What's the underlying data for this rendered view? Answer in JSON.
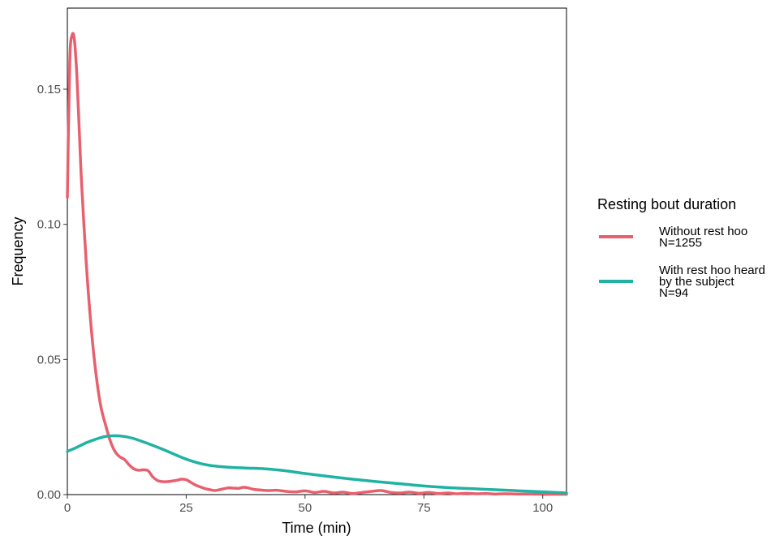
{
  "chart_data": {
    "type": "line",
    "title": "",
    "xlabel": "Time (min)",
    "ylabel": "Frequency",
    "xlim": [
      0,
      105
    ],
    "ylim": [
      0,
      0.18
    ],
    "x_ticks": [
      0,
      25,
      50,
      75,
      100
    ],
    "x_tick_labels": [
      "0",
      "25",
      "50",
      "75",
      "100"
    ],
    "y_ticks": [
      0,
      0.05,
      0.1,
      0.15
    ],
    "y_tick_labels": [
      "0.00",
      "0.05",
      "0.10",
      "0.15"
    ],
    "grid": false,
    "legend": {
      "title": "Resting bout duration",
      "placement": "right"
    },
    "series": [
      {
        "name": "Without rest hoo\nN=1255",
        "color": "#e8606e",
        "x": [
          0,
          0.5,
          1,
          1.5,
          2,
          2.5,
          3,
          4,
          5,
          6,
          7,
          8,
          9,
          10,
          11,
          12,
          13,
          14,
          15,
          16,
          17,
          18,
          19,
          20,
          21,
          22,
          23,
          24,
          25,
          26,
          27,
          28,
          29,
          30,
          31,
          32,
          33,
          34,
          35,
          36,
          37,
          38,
          39,
          40,
          42,
          44,
          46,
          48,
          50,
          52,
          54,
          56,
          58,
          60,
          62,
          64,
          66,
          68,
          70,
          72,
          74,
          76,
          78,
          80,
          82,
          84,
          86,
          88,
          90,
          92,
          95,
          98,
          100,
          102,
          105
        ],
        "values": [
          0.11,
          0.16,
          0.17,
          0.168,
          0.155,
          0.135,
          0.115,
          0.085,
          0.062,
          0.045,
          0.033,
          0.026,
          0.02,
          0.016,
          0.014,
          0.013,
          0.011,
          0.0095,
          0.009,
          0.0092,
          0.0088,
          0.0065,
          0.0052,
          0.0048,
          0.0048,
          0.005,
          0.0053,
          0.0057,
          0.0055,
          0.0045,
          0.0035,
          0.0028,
          0.0022,
          0.0018,
          0.0015,
          0.0018,
          0.0022,
          0.0025,
          0.0024,
          0.0023,
          0.0027,
          0.0025,
          0.002,
          0.0018,
          0.0015,
          0.0016,
          0.0012,
          0.001,
          0.0014,
          0.0008,
          0.0012,
          0.0006,
          0.0009,
          0.0004,
          0.0008,
          0.0012,
          0.0015,
          0.0008,
          0.0006,
          0.0009,
          0.0005,
          0.0008,
          0.0004,
          0.0006,
          0.0003,
          0.0005,
          0.0003,
          0.0004,
          0.0002,
          0.0003,
          0.0002,
          0.0002,
          0.0001,
          0.0001,
          0.0001
        ]
      },
      {
        "name": "With rest hoo heard\nby the subject\nN=94",
        "color": "#20b2a2",
        "x": [
          0,
          2,
          4,
          6,
          8,
          10,
          12,
          14,
          16,
          18,
          20,
          22,
          24,
          26,
          28,
          30,
          32,
          35,
          38,
          40,
          42,
          45,
          48,
          50,
          55,
          60,
          65,
          70,
          75,
          80,
          85,
          90,
          95,
          100,
          105
        ],
        "values": [
          0.016,
          0.0175,
          0.0192,
          0.0205,
          0.0215,
          0.0218,
          0.0215,
          0.0207,
          0.0195,
          0.0182,
          0.0168,
          0.0153,
          0.0138,
          0.0125,
          0.0115,
          0.0108,
          0.0104,
          0.01,
          0.0098,
          0.0097,
          0.0095,
          0.009,
          0.0083,
          0.0078,
          0.0067,
          0.0057,
          0.0048,
          0.004,
          0.0032,
          0.0026,
          0.0022,
          0.0018,
          0.0014,
          0.001,
          0.0006
        ]
      }
    ]
  }
}
